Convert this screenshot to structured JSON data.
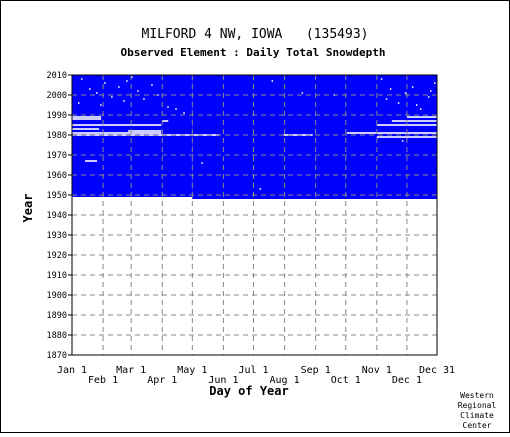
{
  "chart_data": {
    "type": "heatmap",
    "title": "MILFORD 4 NW, IOWA   (135493)",
    "subtitle": "Observed Element : Daily Total Snowdepth",
    "xlabel": "Day of Year",
    "ylabel": "Year",
    "x_ticks_row1": [
      "Jan 1",
      "Mar 1",
      "May 1",
      "Jul 1",
      "Sep 1",
      "Nov 1",
      "Dec 31"
    ],
    "x_ticks_row2": [
      "Feb 1",
      "Apr 1",
      "Jun 1",
      "Aug 1",
      "Oct 1",
      "Dec 1"
    ],
    "month_start_days": [
      1,
      32,
      60,
      91,
      121,
      152,
      182,
      213,
      244,
      274,
      305,
      335,
      365
    ],
    "xlim": [
      1,
      365
    ],
    "ylim": [
      1870,
      2010
    ],
    "y_ticks": [
      2010,
      2000,
      1990,
      1980,
      1970,
      1960,
      1950,
      1940,
      1930,
      1920,
      1910,
      1900,
      1890,
      1880,
      1870
    ],
    "record_start_year": 1948,
    "record_start_year_jan_apr": 1949,
    "record_end_year": 2010,
    "data_color": "#0000ff",
    "missing_color": "#ffffff",
    "missing_rows": [
      {
        "year": 1989,
        "start_day": 1,
        "end_day": 30
      },
      {
        "year": 1988,
        "start_day": 1,
        "end_day": 30
      },
      {
        "year": 1985,
        "start_day": 1,
        "end_day": 90
      },
      {
        "year": 1983,
        "start_day": 1,
        "end_day": 28
      },
      {
        "year": 1982,
        "start_day": 57,
        "end_day": 90
      },
      {
        "year": 1981,
        "start_day": 1,
        "end_day": 90
      },
      {
        "year": 1980,
        "start_day": 1,
        "end_day": 148
      },
      {
        "year": 1980,
        "start_day": 212,
        "end_day": 241
      },
      {
        "year": 1981,
        "start_day": 275,
        "end_day": 365
      },
      {
        "year": 1979,
        "start_day": 305,
        "end_day": 365
      },
      {
        "year": 1985,
        "start_day": 305,
        "end_day": 365
      },
      {
        "year": 1987,
        "start_day": 320,
        "end_day": 365
      },
      {
        "year": 1989,
        "start_day": 335,
        "end_day": 365
      },
      {
        "year": 1967,
        "start_day": 14,
        "end_day": 26
      },
      {
        "year": 1987,
        "start_day": 91,
        "end_day": 97
      }
    ],
    "missing_dots": [
      [
        10,
        2008
      ],
      [
        18,
        2003
      ],
      [
        25,
        2001
      ],
      [
        33,
        2006
      ],
      [
        40,
        1999
      ],
      [
        47,
        2004
      ],
      [
        52,
        1997
      ],
      [
        60,
        2009
      ],
      [
        66,
        2002
      ],
      [
        72,
        1998
      ],
      [
        80,
        2005
      ],
      [
        86,
        2000
      ],
      [
        96,
        1994
      ],
      [
        104,
        1993
      ],
      [
        112,
        1991
      ],
      [
        200,
        2007
      ],
      [
        230,
        2001
      ],
      [
        262,
        2000
      ],
      [
        309,
        2008
      ],
      [
        318,
        2003
      ],
      [
        326,
        1996
      ],
      [
        333,
        2001
      ],
      [
        340,
        2004
      ],
      [
        348,
        1993
      ],
      [
        356,
        1999
      ],
      [
        362,
        2006
      ],
      [
        7,
        1996
      ],
      [
        29,
        1995
      ],
      [
        55,
        2007
      ],
      [
        314,
        1998
      ],
      [
        344,
        1995
      ],
      [
        358,
        2002
      ],
      [
        130,
        1966
      ],
      [
        188,
        1953
      ],
      [
        330,
        1977
      ]
    ],
    "credit": [
      "Western",
      "Regional",
      "Climate",
      "Center"
    ]
  }
}
